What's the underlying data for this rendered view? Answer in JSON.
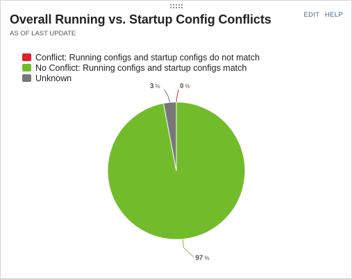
{
  "header": {
    "title": "Overall Running vs. Startup Config Conflicts",
    "subtitle": "AS OF LAST UPDATE",
    "edit_label": "EDIT",
    "help_label": "HELP"
  },
  "colors": {
    "conflict": "#e2202c",
    "no_conflict": "#72bc2b",
    "unknown": "#777777"
  },
  "chart_data": {
    "type": "pie",
    "title": "Overall Running vs. Startup Config Conflicts",
    "series": [
      {
        "name": "Conflict: Running configs and startup configs do not match",
        "value": 0,
        "label": "0",
        "color": "#e2202c"
      },
      {
        "name": "No Conflict: Running configs and startup configs match",
        "value": 97,
        "label": "97",
        "color": "#72bc2b"
      },
      {
        "name": "Unknown",
        "value": 3,
        "label": "3",
        "color": "#777777"
      }
    ],
    "unit": "%",
    "legend_position": "top-left"
  }
}
